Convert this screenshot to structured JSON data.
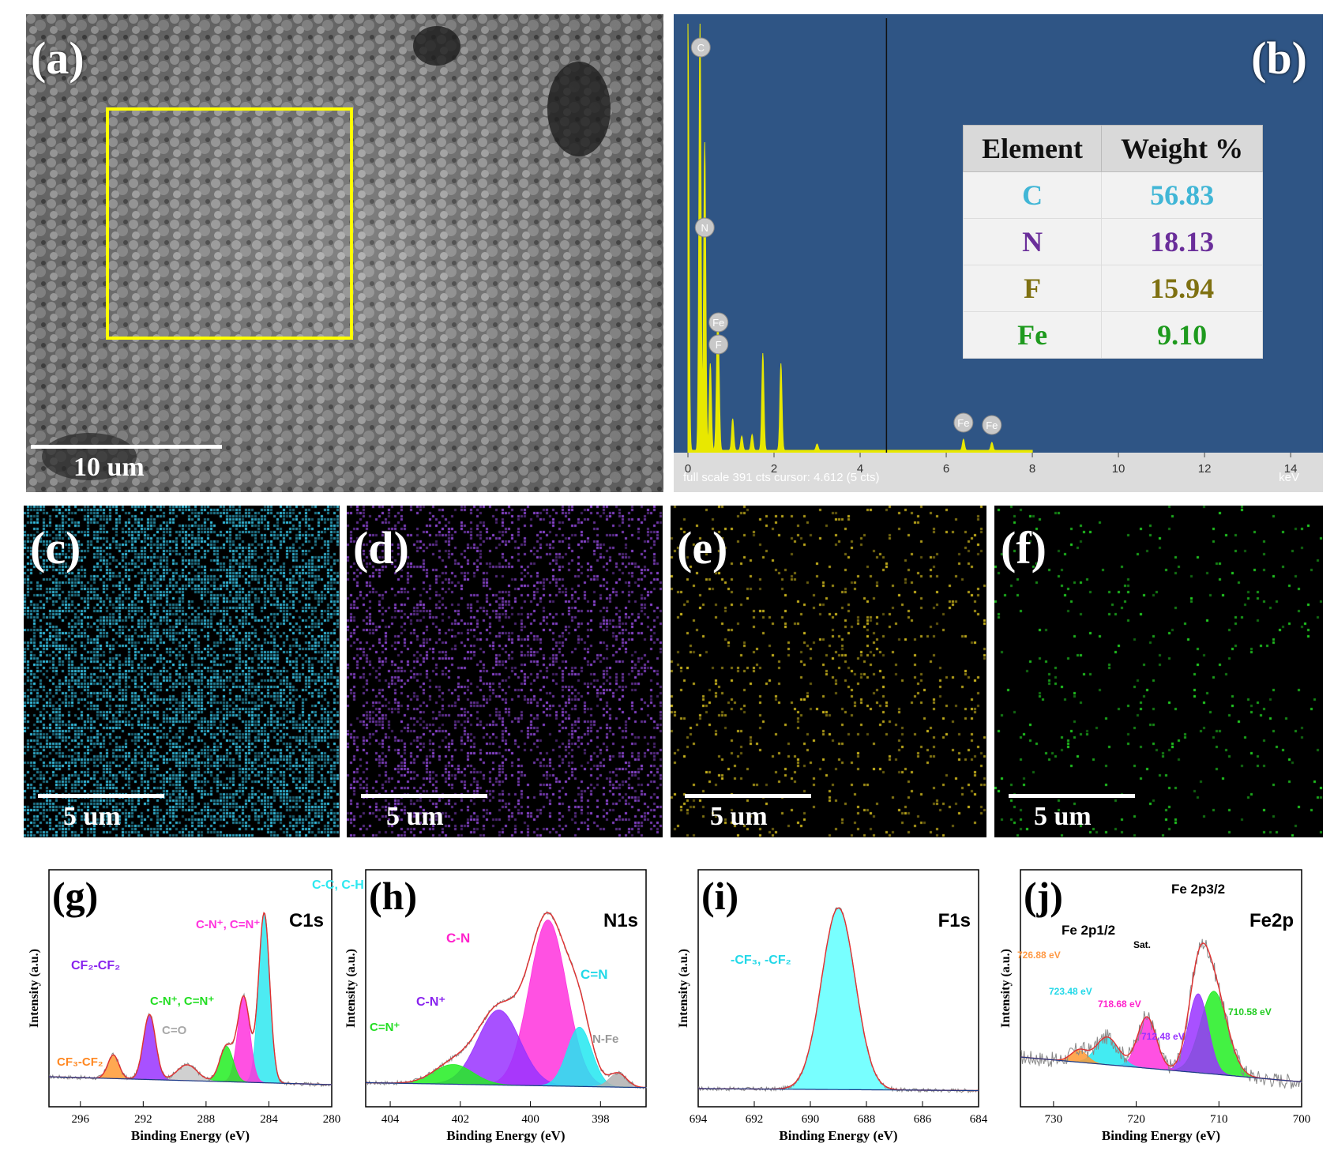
{
  "panels": {
    "a": {
      "label": "(a)",
      "scale": "10 um"
    },
    "b": {
      "label": "(b)",
      "footer": "full scale 391 cts cursor: 4.612 (5 cts)",
      "unit": "keV",
      "x_ticks": [
        "0",
        "2",
        "4",
        "6",
        "8",
        "10",
        "12",
        "14"
      ],
      "peak_labels": [
        "C",
        "N",
        "Fe",
        "F",
        "Fe",
        "Fe"
      ],
      "table": {
        "headers": [
          "Element",
          "Weight %"
        ],
        "rows": [
          {
            "element": "C",
            "value": "56.83",
            "color": "#41b6d6"
          },
          {
            "element": "N",
            "value": "18.13",
            "color": "#6a2e9a"
          },
          {
            "element": "F",
            "value": "15.94",
            "color": "#7f7112"
          },
          {
            "element": "Fe",
            "value": "9.10",
            "color": "#1e9a1e"
          }
        ]
      }
    },
    "c": {
      "label": "(c)",
      "scale": "5 um",
      "color": "#36c3e6"
    },
    "d": {
      "label": "(d)",
      "scale": "5 um",
      "color": "#8e47d6"
    },
    "e": {
      "label": "(e)",
      "scale": "5 um",
      "color": "#d2bb1e"
    },
    "f": {
      "label": "(f)",
      "scale": "5 um",
      "color": "#23d423"
    }
  },
  "xps": {
    "ylabel": "Intensity (a.u.)",
    "xlabel": "Binding Energy (eV)",
    "g": {
      "label": "(g)",
      "title": "C1s",
      "ticks": [
        "296",
        "292",
        "288",
        "284",
        "280"
      ],
      "annotations": [
        "C-C, C-H",
        "C-N⁺, C=N⁺",
        "CF₂-CF₂",
        "C-N⁺, C=N⁺",
        "C=O",
        "CF₃-CF₂"
      ]
    },
    "h": {
      "label": "(h)",
      "title": "N1s",
      "ticks": [
        "404",
        "402",
        "400",
        "398"
      ],
      "annotations": [
        "C-N",
        "C-N⁺",
        "C=N",
        "N-Fe",
        "C=N⁺"
      ]
    },
    "i": {
      "label": "(i)",
      "title": "F1s",
      "ticks": [
        "694",
        "692",
        "690",
        "688",
        "686",
        "684"
      ],
      "annotations": [
        "-CF₃, -CF₂"
      ]
    },
    "j": {
      "label": "(j)",
      "title": "Fe2p",
      "ticks": [
        "730",
        "720",
        "710",
        "700"
      ],
      "annotations": [
        "Fe 2p3/2",
        "Fe 2p1/2",
        "Sat.",
        "726.88 eV",
        "723.48 eV",
        "718.68 eV",
        "712.48 eV",
        "710.58 eV"
      ]
    }
  }
}
